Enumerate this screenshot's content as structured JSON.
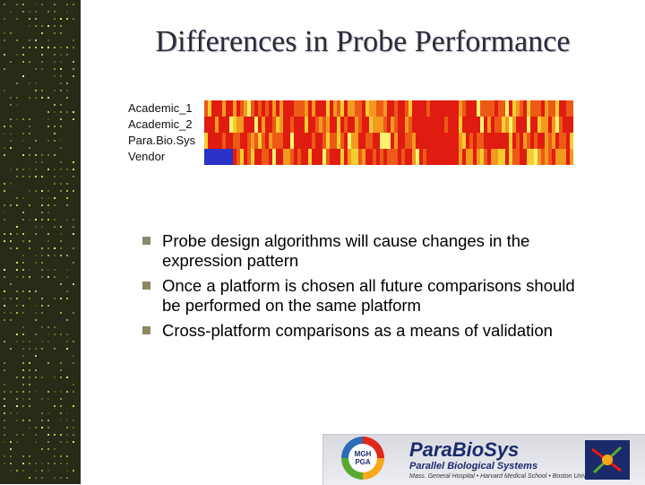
{
  "title": "Differences in Probe Performance",
  "heatmap": {
    "rows": [
      "Academic_1",
      "Academic_2",
      "Para.Bio.Sys",
      "Vendor"
    ],
    "palette": [
      "#2a32c8",
      "#e01b10",
      "#ec5a16",
      "#f39a1e",
      "#f8cc30",
      "#fff270"
    ]
  },
  "bullets": [
    {
      "lines": [
        "Probe design algorithms will cause changes in the",
        "expression pattern"
      ]
    },
    {
      "lines": [
        "Once a platform is chosen all future comparisons should",
        "be performed on the same platform"
      ]
    },
    {
      "lines": [
        "Cross-platform comparisons as a means of validation"
      ]
    }
  ],
  "logo": {
    "mgh_text": "MGH PGA",
    "brand": "ParaBioSys",
    "subtitle": "Parallel Biological Systems",
    "institutions": "Mass. General Hospital • Harvard Medical School • Boston University"
  },
  "colors": {
    "strip_background": "#262c17",
    "title_text": "#2a2a3a",
    "bullet_marker": "#8b8a64",
    "brand_blue": "#1b2a6a"
  }
}
